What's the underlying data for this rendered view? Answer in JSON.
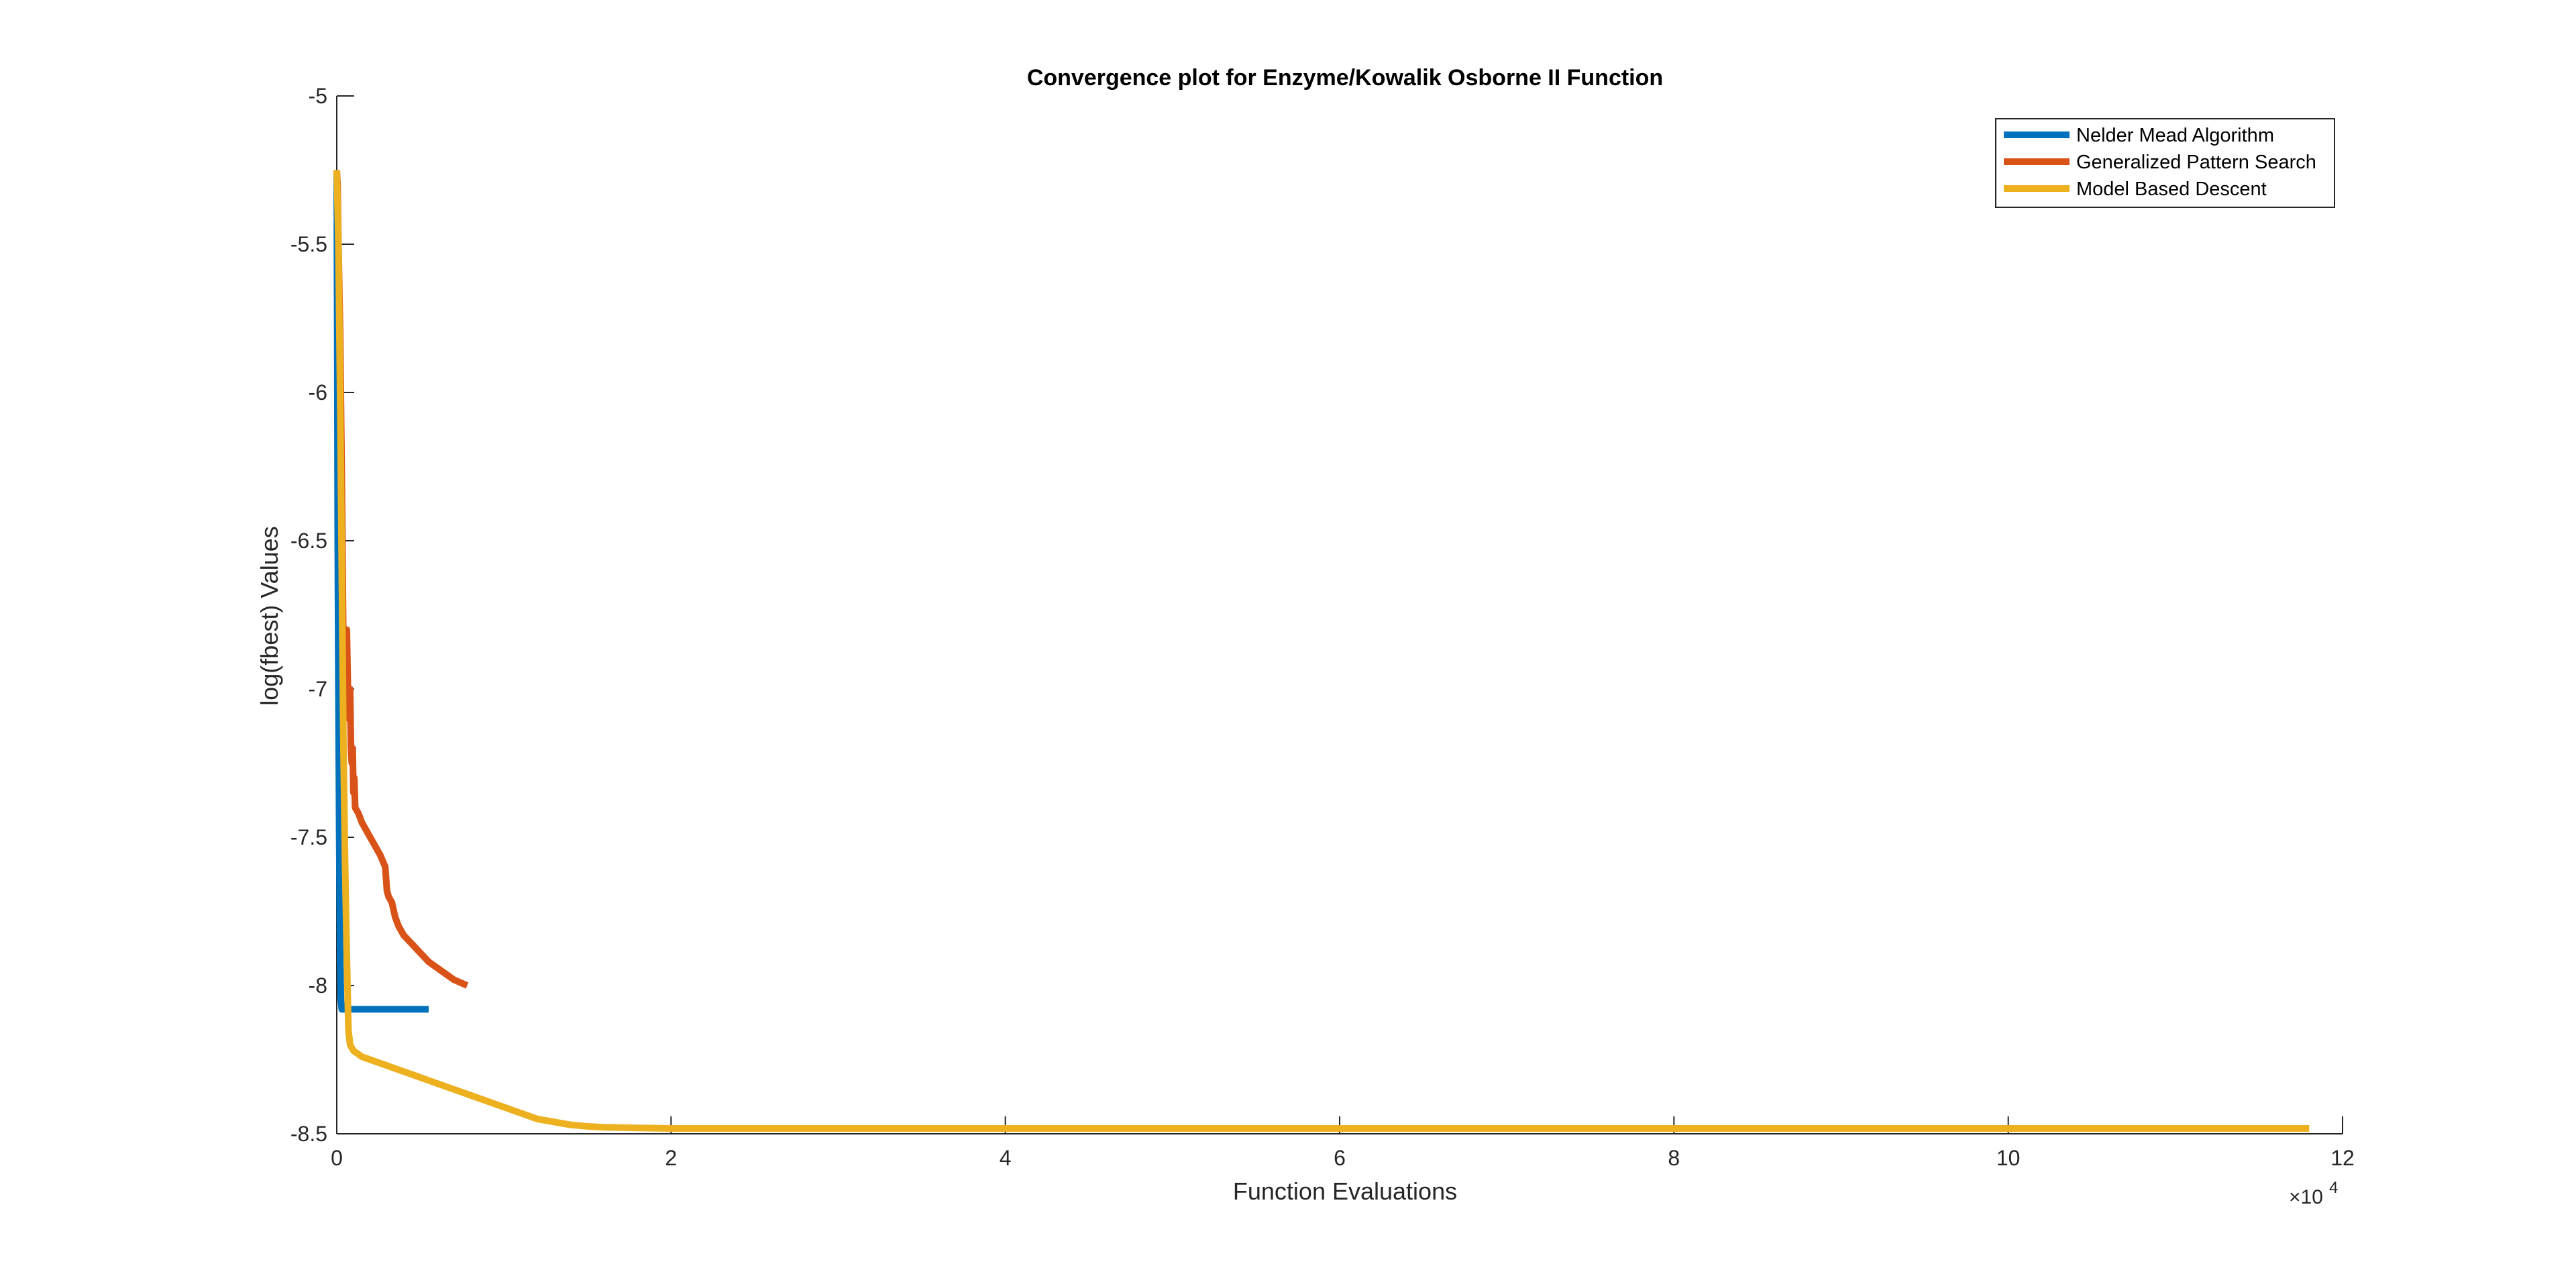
{
  "chart_data": {
    "type": "line",
    "title": "Convergence plot for Enzyme/Kowalik Osborne II Function",
    "xlabel": "Function Evaluations",
    "ylabel": "log(fbest) Values",
    "x_multiplier_base": "×10",
    "x_multiplier_exp": "4",
    "xlim": [
      0,
      120000
    ],
    "ylim": [
      -8.5,
      -5
    ],
    "xticks": [
      0,
      20000,
      40000,
      60000,
      80000,
      100000,
      120000
    ],
    "xtick_labels": [
      "0",
      "2",
      "4",
      "6",
      "8",
      "10",
      "12"
    ],
    "yticks": [
      -8.5,
      -8,
      -7.5,
      -7,
      -6.5,
      -6,
      -5.5,
      -5
    ],
    "ytick_labels": [
      "-8.5",
      "-8",
      "-7.5",
      "-7",
      "-6.5",
      "-6",
      "-5.5",
      "-5"
    ],
    "grid": false,
    "legend_position": "top-right",
    "series": [
      {
        "name": "Nelder Mead Algorithm",
        "color": "#0072BD",
        "x": [
          0,
          30,
          60,
          100,
          150,
          200,
          250,
          300,
          400,
          600,
          1000,
          2000,
          3500,
          5500
        ],
        "y": [
          -5.25,
          -5.8,
          -6.5,
          -7.0,
          -7.5,
          -7.9,
          -8.05,
          -8.08,
          -8.08,
          -8.08,
          -8.08,
          -8.08,
          -8.08,
          -8.08
        ]
      },
      {
        "name": "Generalized Pattern Search",
        "color": "#D95319",
        "x": [
          0,
          50,
          100,
          200,
          300,
          400,
          500,
          600,
          650,
          700,
          750,
          800,
          850,
          900,
          950,
          1000,
          1050,
          1100,
          1200,
          1300,
          1500,
          2000,
          2600,
          2900,
          3000,
          3100,
          3300,
          3500,
          3700,
          4000,
          4500,
          5000,
          5500,
          6000,
          7000,
          7800
        ],
        "y": [
          -5.25,
          -5.3,
          -5.5,
          -5.8,
          -6.3,
          -6.9,
          -7.0,
          -6.8,
          -6.95,
          -7.1,
          -7.05,
          -7.0,
          -7.2,
          -7.25,
          -7.2,
          -7.35,
          -7.3,
          -7.4,
          -7.41,
          -7.42,
          -7.45,
          -7.5,
          -7.56,
          -7.6,
          -7.68,
          -7.7,
          -7.72,
          -7.77,
          -7.8,
          -7.83,
          -7.86,
          -7.89,
          -7.92,
          -7.94,
          -7.98,
          -8.0
        ]
      },
      {
        "name": "Model Based Descent",
        "color": "#EDB120",
        "x": [
          0,
          100,
          200,
          300,
          400,
          500,
          600,
          700,
          800,
          1000,
          1500,
          2000,
          3000,
          4000,
          5000,
          6000,
          7000,
          8000,
          9000,
          10000,
          11000,
          12000,
          13000,
          14000,
          15000,
          16000,
          18000,
          20000,
          25000,
          30000,
          40000,
          60000,
          80000,
          100000,
          118000
        ],
        "y": [
          -5.25,
          -5.5,
          -6.0,
          -6.6,
          -7.2,
          -7.6,
          -7.9,
          -8.15,
          -8.2,
          -8.22,
          -8.24,
          -8.25,
          -8.27,
          -8.29,
          -8.31,
          -8.33,
          -8.35,
          -8.37,
          -8.39,
          -8.41,
          -8.43,
          -8.45,
          -8.46,
          -8.47,
          -8.475,
          -8.478,
          -8.48,
          -8.482,
          -8.482,
          -8.482,
          -8.482,
          -8.482,
          -8.482,
          -8.482,
          -8.482
        ]
      }
    ]
  }
}
